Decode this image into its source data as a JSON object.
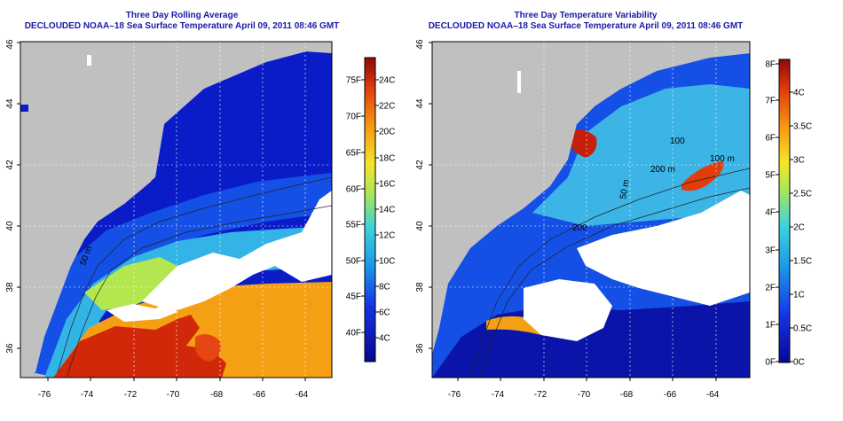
{
  "panels": [
    {
      "title": "Three Day Rolling Average",
      "subtitle": "DECLOUDED NOAA–18 Sea Surface Temperature April 09, 2011 08:46 GMT",
      "colorbar": {
        "left_labels": [
          "75F",
          "70F",
          "65F",
          "60F",
          "55F",
          "50F",
          "45F",
          "40F"
        ],
        "right_labels": [
          "24C",
          "22C",
          "20C",
          "18C",
          "16C",
          "14C",
          "12C",
          "10C",
          "8C",
          "6C",
          "4C"
        ]
      },
      "contour_labels": [
        "50 m"
      ]
    },
    {
      "title": "Three Day Temperature Variability",
      "subtitle": "DECLOUDED NOAA–18 Sea Surface Temperature April 09, 2011 08:46 GMT",
      "colorbar": {
        "left_labels": [
          "8F",
          "7F",
          "6F",
          "5F",
          "4F",
          "3F",
          "2F",
          "1F",
          "0F"
        ],
        "right_labels": [
          "4C",
          "3.5C",
          "3C",
          "2.5C",
          "2C",
          "1.5C",
          "1C",
          "0.5C",
          "0C"
        ]
      },
      "contour_labels": [
        "100",
        "100 m",
        "200 m",
        "50 m",
        "200"
      ]
    }
  ],
  "axes": {
    "longitude_ticks": [
      "-76",
      "-74",
      "-72",
      "-70",
      "-68",
      "-66",
      "-64"
    ],
    "latitude_ticks": [
      "36",
      "38",
      "40",
      "42",
      "44",
      "46"
    ]
  },
  "colors": {
    "title": "#1a1aa8",
    "land": "#c0c0c0",
    "cloud_mask": "#ffffff",
    "cold": "#0a14b4",
    "warm": "#c81e0a"
  }
}
